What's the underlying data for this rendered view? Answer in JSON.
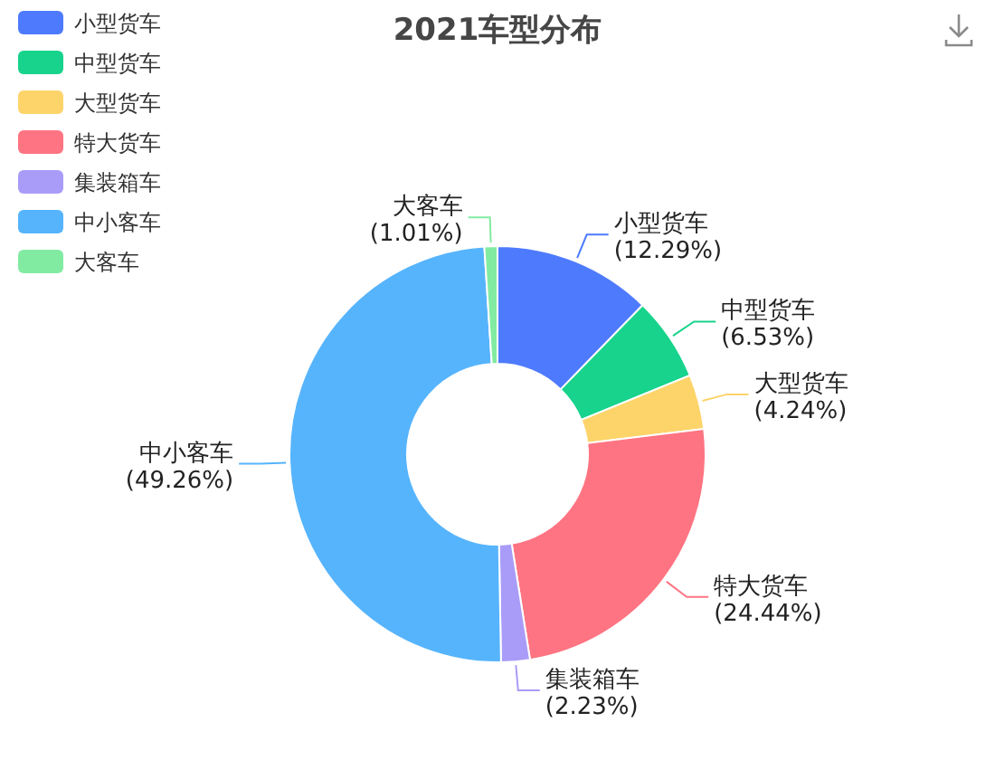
{
  "chart_data": {
    "type": "donut",
    "title": "2021车型分布",
    "categories": [
      "小型货车",
      "中型货车",
      "大型货车",
      "特大货车",
      "集装箱车",
      "中小客车",
      "大客车"
    ],
    "values": [
      12.29,
      6.53,
      4.24,
      24.44,
      2.23,
      49.26,
      1.01
    ],
    "value_labels": [
      "(12.29%)",
      "(6.53%)",
      "(4.24%)",
      "(24.44%)",
      "(2.23%)",
      "(49.26%)",
      "(1.01%)"
    ],
    "colors": [
      "#4e7bfd",
      "#17d38b",
      "#fdd46a",
      "#ff7482",
      "#a99cf8",
      "#56b4fd",
      "#82eba2"
    ],
    "legend": "top left"
  }
}
